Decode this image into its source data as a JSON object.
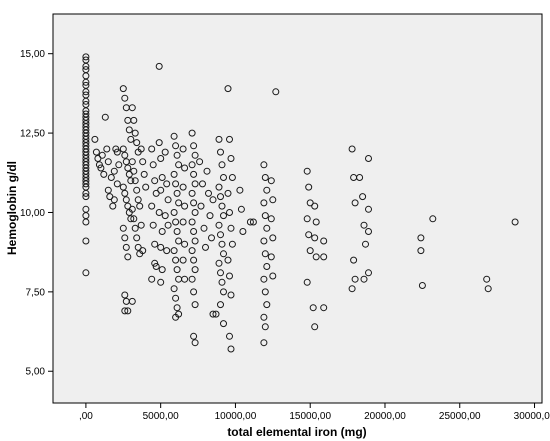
{
  "chart_data": {
    "type": "scatter",
    "xlabel": "total elemental iron (mg)",
    "ylabel": "Hemoglobin g/dl",
    "xlim": [
      -2200,
      30500
    ],
    "ylim": [
      4.0,
      16.25
    ],
    "grid": false,
    "legend": "none",
    "colors": {
      "plot_bg": "#efefef",
      "marker_stroke": "#1a1a1a",
      "axis": "#000000"
    },
    "x_ticks": [
      {
        "value": 0,
        "label": ",00"
      },
      {
        "value": 5000,
        "label": "5000,00"
      },
      {
        "value": 10000,
        "label": "10000,00"
      },
      {
        "value": 15000,
        "label": "15000,00"
      },
      {
        "value": 20000,
        "label": "20000,00"
      },
      {
        "value": 25000,
        "label": "25000,00"
      },
      {
        "value": 30000,
        "label": "30000,00"
      }
    ],
    "y_ticks": [
      {
        "value": 5.0,
        "label": "5,00"
      },
      {
        "value": 7.5,
        "label": "7,50"
      },
      {
        "value": 10.0,
        "label": "10,00"
      },
      {
        "value": 12.5,
        "label": "12,50"
      },
      {
        "value": 15.0,
        "label": "15,00"
      }
    ],
    "points": [
      [
        0,
        14.9
      ],
      [
        0,
        14.8
      ],
      [
        0,
        14.6
      ],
      [
        0,
        14.5
      ],
      [
        0,
        14.3
      ],
      [
        0,
        14.1
      ],
      [
        0,
        14.0
      ],
      [
        0,
        13.8
      ],
      [
        0,
        13.7
      ],
      [
        0,
        13.5
      ],
      [
        0,
        13.4
      ],
      [
        0,
        13.2
      ],
      [
        0,
        13.1
      ],
      [
        0,
        13.0
      ],
      [
        0,
        12.9
      ],
      [
        0,
        12.8
      ],
      [
        0,
        12.7
      ],
      [
        0,
        12.6
      ],
      [
        0,
        12.5
      ],
      [
        0,
        12.4
      ],
      [
        0,
        12.3
      ],
      [
        0,
        12.2
      ],
      [
        0,
        12.1
      ],
      [
        0,
        12.0
      ],
      [
        0,
        11.9
      ],
      [
        0,
        11.8
      ],
      [
        0,
        11.7
      ],
      [
        0,
        11.6
      ],
      [
        0,
        11.5
      ],
      [
        0,
        11.4
      ],
      [
        0,
        11.3
      ],
      [
        0,
        11.2
      ],
      [
        0,
        11.1
      ],
      [
        0,
        11.0
      ],
      [
        0,
        10.9
      ],
      [
        0,
        10.8
      ],
      [
        0,
        10.6
      ],
      [
        0,
        10.5
      ],
      [
        0,
        10.1
      ],
      [
        0,
        9.9
      ],
      [
        0,
        9.7
      ],
      [
        0,
        9.1
      ],
      [
        0,
        8.1
      ],
      [
        600,
        12.3
      ],
      [
        700,
        11.9
      ],
      [
        800,
        11.7
      ],
      [
        900,
        11.5
      ],
      [
        1000,
        11.4
      ],
      [
        1100,
        11.8
      ],
      [
        1200,
        11.2
      ],
      [
        1300,
        13.0
      ],
      [
        1400,
        12.0
      ],
      [
        1500,
        11.6
      ],
      [
        1600,
        10.5
      ],
      [
        1700,
        11.1
      ],
      [
        1800,
        10.2
      ],
      [
        1900,
        11.3
      ],
      [
        2000,
        12.0
      ],
      [
        2100,
        10.9
      ],
      [
        2200,
        11.5
      ],
      [
        1500,
        10.7
      ],
      [
        1900,
        10.4
      ],
      [
        2100,
        11.9
      ],
      [
        2500,
        13.9
      ],
      [
        2600,
        13.6
      ],
      [
        2700,
        13.3
      ],
      [
        2800,
        12.9
      ],
      [
        2900,
        12.6
      ],
      [
        3000,
        12.3
      ],
      [
        2500,
        12.0
      ],
      [
        2600,
        11.8
      ],
      [
        2700,
        11.6
      ],
      [
        2800,
        11.4
      ],
      [
        2900,
        11.2
      ],
      [
        3000,
        11.0
      ],
      [
        2500,
        10.8
      ],
      [
        2600,
        10.6
      ],
      [
        2700,
        10.4
      ],
      [
        2800,
        10.2
      ],
      [
        2900,
        10.0
      ],
      [
        3000,
        9.8
      ],
      [
        2500,
        9.5
      ],
      [
        2600,
        9.2
      ],
      [
        2700,
        8.9
      ],
      [
        2800,
        8.6
      ],
      [
        2600,
        7.4
      ],
      [
        2700,
        7.2
      ],
      [
        2600,
        6.9
      ],
      [
        2800,
        6.9
      ],
      [
        3100,
        13.3
      ],
      [
        3200,
        12.9
      ],
      [
        3300,
        12.5
      ],
      [
        3400,
        12.2
      ],
      [
        3500,
        11.9
      ],
      [
        3100,
        11.6
      ],
      [
        3200,
        11.3
      ],
      [
        3300,
        11.0
      ],
      [
        3400,
        10.7
      ],
      [
        3500,
        10.4
      ],
      [
        3100,
        10.1
      ],
      [
        3200,
        9.8
      ],
      [
        3300,
        9.5
      ],
      [
        3400,
        9.2
      ],
      [
        3500,
        8.9
      ],
      [
        3700,
        12.0
      ],
      [
        3800,
        11.6
      ],
      [
        3900,
        11.2
      ],
      [
        4000,
        10.8
      ],
      [
        3600,
        10.2
      ],
      [
        3700,
        9.6
      ],
      [
        3800,
        8.8
      ],
      [
        3600,
        8.7
      ],
      [
        3100,
        7.2
      ],
      [
        4400,
        12.0
      ],
      [
        4500,
        11.5
      ],
      [
        4600,
        11.0
      ],
      [
        4700,
        10.6
      ],
      [
        4400,
        10.2
      ],
      [
        4500,
        9.6
      ],
      [
        4600,
        9.0
      ],
      [
        4700,
        8.3
      ],
      [
        4400,
        7.9
      ],
      [
        4600,
        8.4
      ],
      [
        4900,
        14.6
      ],
      [
        4900,
        12.2
      ],
      [
        5000,
        11.7
      ],
      [
        5100,
        11.1
      ],
      [
        5000,
        10.7
      ],
      [
        4900,
        10.0
      ],
      [
        5100,
        9.4
      ],
      [
        5000,
        8.9
      ],
      [
        5100,
        8.2
      ],
      [
        5000,
        7.8
      ],
      [
        5300,
        11.9
      ],
      [
        5400,
        10.9
      ],
      [
        5500,
        10.4
      ],
      [
        5300,
        9.9
      ],
      [
        5500,
        9.6
      ],
      [
        5400,
        8.8
      ],
      [
        5900,
        12.4
      ],
      [
        6000,
        12.1
      ],
      [
        6100,
        11.8
      ],
      [
        6200,
        11.5
      ],
      [
        5900,
        11.2
      ],
      [
        6000,
        10.9
      ],
      [
        6100,
        10.6
      ],
      [
        6200,
        10.3
      ],
      [
        5900,
        10.0
      ],
      [
        6000,
        9.7
      ],
      [
        6100,
        9.4
      ],
      [
        6200,
        9.1
      ],
      [
        5900,
        8.8
      ],
      [
        6000,
        8.5
      ],
      [
        6100,
        8.2
      ],
      [
        6200,
        7.9
      ],
      [
        5900,
        7.6
      ],
      [
        6000,
        7.3
      ],
      [
        6100,
        7.0
      ],
      [
        6200,
        6.8
      ],
      [
        6000,
        6.7
      ],
      [
        6500,
        12.0
      ],
      [
        6600,
        11.4
      ],
      [
        6500,
        10.8
      ],
      [
        6600,
        10.2
      ],
      [
        6500,
        9.7
      ],
      [
        6600,
        9.0
      ],
      [
        6500,
        8.5
      ],
      [
        6600,
        7.9
      ],
      [
        7100,
        12.5
      ],
      [
        7200,
        12.1
      ],
      [
        7300,
        11.8
      ],
      [
        7100,
        11.5
      ],
      [
        7200,
        11.2
      ],
      [
        7300,
        10.9
      ],
      [
        7100,
        10.6
      ],
      [
        7200,
        10.3
      ],
      [
        7300,
        10.0
      ],
      [
        7100,
        9.7
      ],
      [
        7200,
        9.4
      ],
      [
        7300,
        9.1
      ],
      [
        7100,
        8.8
      ],
      [
        7200,
        8.5
      ],
      [
        7300,
        8.2
      ],
      [
        7100,
        7.9
      ],
      [
        7200,
        7.5
      ],
      [
        7300,
        7.1
      ],
      [
        7200,
        6.1
      ],
      [
        7300,
        5.9
      ],
      [
        7600,
        11.6
      ],
      [
        7800,
        10.9
      ],
      [
        7700,
        10.2
      ],
      [
        7900,
        9.5
      ],
      [
        8000,
        8.9
      ],
      [
        8100,
        11.3
      ],
      [
        8200,
        10.6
      ],
      [
        8300,
        9.9
      ],
      [
        8400,
        9.2
      ],
      [
        8500,
        10.4
      ],
      [
        8500,
        6.8
      ],
      [
        8700,
        6.8
      ],
      [
        8900,
        12.3
      ],
      [
        9000,
        11.9
      ],
      [
        9100,
        11.5
      ],
      [
        9200,
        11.1
      ],
      [
        8900,
        10.8
      ],
      [
        9000,
        10.5
      ],
      [
        9100,
        10.2
      ],
      [
        9200,
        9.9
      ],
      [
        8900,
        9.6
      ],
      [
        9000,
        9.3
      ],
      [
        9100,
        9.0
      ],
      [
        9200,
        8.7
      ],
      [
        8900,
        8.4
      ],
      [
        9000,
        8.1
      ],
      [
        9100,
        7.8
      ],
      [
        9200,
        7.5
      ],
      [
        9000,
        7.1
      ],
      [
        9200,
        6.5
      ],
      [
        9500,
        13.9
      ],
      [
        9600,
        12.3
      ],
      [
        9700,
        11.7
      ],
      [
        9800,
        11.1
      ],
      [
        9500,
        10.6
      ],
      [
        9600,
        10.0
      ],
      [
        9700,
        9.5
      ],
      [
        9800,
        9.0
      ],
      [
        9500,
        8.5
      ],
      [
        9600,
        8.0
      ],
      [
        9700,
        7.4
      ],
      [
        9600,
        6.1
      ],
      [
        9700,
        5.7
      ],
      [
        10300,
        10.7
      ],
      [
        10400,
        10.1
      ],
      [
        10500,
        9.4
      ],
      [
        11000,
        9.7
      ],
      [
        11200,
        9.7
      ],
      [
        11900,
        11.5
      ],
      [
        12000,
        11.1
      ],
      [
        12100,
        10.7
      ],
      [
        11900,
        10.3
      ],
      [
        12000,
        9.9
      ],
      [
        12100,
        9.5
      ],
      [
        11900,
        9.1
      ],
      [
        12000,
        8.7
      ],
      [
        12100,
        8.3
      ],
      [
        11900,
        7.9
      ],
      [
        12000,
        7.5
      ],
      [
        12100,
        7.1
      ],
      [
        11900,
        6.7
      ],
      [
        12000,
        6.4
      ],
      [
        11900,
        5.9
      ],
      [
        12400,
        11.0
      ],
      [
        12500,
        10.4
      ],
      [
        12400,
        9.8
      ],
      [
        12500,
        9.2
      ],
      [
        12400,
        8.6
      ],
      [
        12500,
        8.0
      ],
      [
        12700,
        13.8
      ],
      [
        14800,
        11.3
      ],
      [
        14900,
        10.8
      ],
      [
        15000,
        10.3
      ],
      [
        14800,
        9.8
      ],
      [
        14900,
        9.3
      ],
      [
        15000,
        8.8
      ],
      [
        14800,
        7.8
      ],
      [
        15300,
        10.2
      ],
      [
        15400,
        9.7
      ],
      [
        15300,
        9.2
      ],
      [
        15400,
        8.6
      ],
      [
        15200,
        7.0
      ],
      [
        15300,
        6.4
      ],
      [
        15900,
        9.1
      ],
      [
        15900,
        8.6
      ],
      [
        15900,
        7.0
      ],
      [
        17800,
        12.0
      ],
      [
        17900,
        11.1
      ],
      [
        18000,
        10.3
      ],
      [
        17900,
        8.5
      ],
      [
        18000,
        7.9
      ],
      [
        17800,
        7.6
      ],
      [
        18300,
        11.1
      ],
      [
        18500,
        10.5
      ],
      [
        18600,
        9.6
      ],
      [
        18700,
        9.0
      ],
      [
        18600,
        7.9
      ],
      [
        18900,
        10.1
      ],
      [
        18900,
        9.4
      ],
      [
        18900,
        8.1
      ],
      [
        18900,
        11.7
      ],
      [
        22400,
        9.2
      ],
      [
        22400,
        8.8
      ],
      [
        22500,
        7.7
      ],
      [
        23200,
        9.8
      ],
      [
        26800,
        7.9
      ],
      [
        26900,
        7.6
      ],
      [
        28700,
        9.7
      ]
    ]
  }
}
